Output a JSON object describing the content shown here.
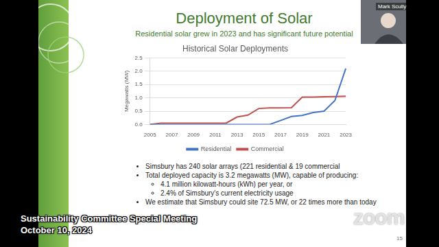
{
  "chart_data": {
    "type": "line",
    "title": "Historical Solar Deployments",
    "y_label": "Megawatts (MW)",
    "categories": [
      "2005",
      null,
      "2007",
      null,
      "2009",
      null,
      "2011",
      null,
      "2013",
      null,
      "2015",
      null,
      "2017",
      null,
      "2019",
      null,
      "2021",
      null,
      "2023"
    ],
    "series": [
      {
        "name": "Residential",
        "color": "#4472c4",
        "values": [
          0,
          0,
          0,
          0,
          0,
          0,
          0,
          0,
          0,
          0,
          0,
          0,
          0.15,
          0.3,
          0.34,
          0.45,
          0.5,
          0.9,
          2.1
        ]
      },
      {
        "name": "Commercial",
        "color": "#c0504d",
        "values": [
          0,
          0.05,
          0.05,
          0.05,
          0.05,
          0.05,
          0.05,
          0.05,
          0.28,
          0.35,
          0.6,
          0.62,
          0.62,
          0.63,
          1.03,
          1.03,
          1.04,
          1.05,
          1.06
        ]
      }
    ],
    "ylim": [
      0,
      2.5
    ],
    "yticks": [
      {
        "value": 0,
        "label": "0.0"
      },
      {
        "value": 0.5,
        "label": "0.5"
      },
      {
        "value": 1,
        "label": "1.0"
      },
      {
        "value": 1.5,
        "label": "1.5"
      },
      {
        "value": 2,
        "label": "2.0"
      },
      {
        "value": 2.5,
        "label": "2.5"
      }
    ],
    "grid": true,
    "legend": "bottom"
  },
  "slide": {
    "title": "Deployment of Solar",
    "subtitle": "Residential solar grew in 2023 and has significant future potential",
    "bullets": [
      {
        "text": "Simsbury has 240 solar arrays (221 residential & 19 commercial",
        "sub": []
      },
      {
        "text": "Total deployed capacity is 3.2 megawatts (MW), capable of producing:",
        "sub": [
          "4.1 million kilowatt-hours (kWh) per year, or",
          "2.4% of Simsbury's current electricity usage"
        ]
      },
      {
        "text": "We estimate that Simsbury could site 72.5 MW, or 22 times more than today",
        "sub": []
      }
    ],
    "page": 15
  },
  "meeting": {
    "title": "Sustainability Committee Special Meeting",
    "date": "October 10, 2024"
  },
  "participant": "Mark Scully",
  "watermark": "zoom"
}
